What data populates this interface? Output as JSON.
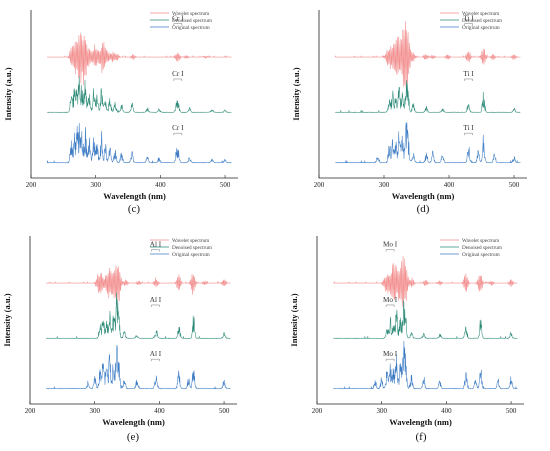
{
  "colors": {
    "wavelet": "#f28b8b",
    "denoised": "#2e8b78",
    "original": "#3d7cc4",
    "axis": "#222222"
  },
  "chart_data": [
    {
      "type": "line",
      "panel": "(c)",
      "element": "Cr I",
      "xlabel": "Wavelength (nm)",
      "ylabel": "Intensity (a.u.)",
      "xlim": [
        200,
        520
      ],
      "xticks": [
        200,
        300,
        400,
        500
      ],
      "legend": [
        "Wavelet spectrum",
        "Denoised spectrum",
        "Original spectrum"
      ],
      "legend_position": "top-right",
      "element_line_nm": 427,
      "series": [
        {
          "name": "Wavelet spectrum",
          "range": [
            225,
            510
          ],
          "peaks": [
            [
              263,
              0.45
            ],
            [
              268,
              0.55
            ],
            [
              273,
              0.7
            ],
            [
              277,
              0.85
            ],
            [
              281,
              0.6
            ],
            [
              284,
              0.75
            ],
            [
              290,
              0.4
            ],
            [
              298,
              0.5
            ],
            [
              303,
              0.35
            ],
            [
              311,
              0.95
            ],
            [
              318,
              0.3
            ],
            [
              326,
              0.25
            ],
            [
              333,
              0.18
            ],
            [
              358,
              0.12
            ],
            [
              425,
              0.15
            ],
            [
              428,
              0.12
            ],
            [
              440,
              0.08
            ],
            [
              470,
              0.06
            ]
          ]
        },
        {
          "name": "Denoised spectrum",
          "range": [
            225,
            510
          ],
          "peaks": [
            [
              262,
              0.5
            ],
            [
              267,
              0.62
            ],
            [
              271,
              0.75
            ],
            [
              275,
              0.9
            ],
            [
              279,
              0.68
            ],
            [
              284,
              0.8
            ],
            [
              290,
              0.55
            ],
            [
              297,
              0.6
            ],
            [
              302,
              0.45
            ],
            [
              309,
              0.7
            ],
            [
              315,
              0.4
            ],
            [
              322,
              0.35
            ],
            [
              330,
              0.3
            ],
            [
              340,
              0.22
            ],
            [
              356,
              0.25
            ],
            [
              380,
              0.12
            ],
            [
              398,
              0.1
            ],
            [
              425,
              0.25
            ],
            [
              428,
              0.2
            ],
            [
              445,
              0.12
            ],
            [
              480,
              0.08
            ],
            [
              500,
              0.06
            ]
          ]
        },
        {
          "name": "Original spectrum",
          "range": [
            225,
            510
          ],
          "peaks": [
            [
              262,
              0.55
            ],
            [
              267,
              0.68
            ],
            [
              271,
              0.8
            ],
            [
              275,
              0.95
            ],
            [
              279,
              0.72
            ],
            [
              284,
              0.85
            ],
            [
              290,
              0.6
            ],
            [
              297,
              0.66
            ],
            [
              302,
              0.5
            ],
            [
              309,
              0.75
            ],
            [
              315,
              0.45
            ],
            [
              322,
              0.4
            ],
            [
              330,
              0.35
            ],
            [
              340,
              0.28
            ],
            [
              356,
              0.3
            ],
            [
              380,
              0.15
            ],
            [
              398,
              0.14
            ],
            [
              425,
              0.3
            ],
            [
              428,
              0.25
            ],
            [
              445,
              0.15
            ],
            [
              480,
              0.1
            ],
            [
              500,
              0.08
            ]
          ]
        }
      ]
    },
    {
      "type": "line",
      "panel": "(d)",
      "element": "Ti I",
      "xlabel": "Wavelength (nm)",
      "ylabel": "Intensity (a.u.)",
      "xlim": [
        200,
        520
      ],
      "xticks": [
        200,
        300,
        400,
        500
      ],
      "legend": [
        "Wavelet spectrum",
        "Denoised spectrum",
        "Original spectrum"
      ],
      "legend_position": "top-right",
      "element_line_nm": 430,
      "series": [
        {
          "name": "Wavelet spectrum",
          "range": [
            225,
            510
          ],
          "peaks": [
            [
              305,
              0.3
            ],
            [
              310,
              0.45
            ],
            [
              316,
              0.55
            ],
            [
              320,
              0.65
            ],
            [
              323,
              0.55
            ],
            [
              328,
              0.7
            ],
            [
              332,
              0.85
            ],
            [
              335,
              0.95
            ],
            [
              338,
              0.6
            ],
            [
              345,
              0.2
            ],
            [
              364,
              0.15
            ],
            [
              375,
              0.1
            ],
            [
              398,
              0.15
            ],
            [
              430,
              0.3
            ],
            [
              453,
              0.45
            ],
            [
              468,
              0.15
            ],
            [
              500,
              0.15
            ]
          ]
        },
        {
          "name": "Denoised spectrum",
          "range": [
            225,
            510
          ],
          "peaks": [
            [
              308,
              0.35
            ],
            [
              313,
              0.5
            ],
            [
              318,
              0.42
            ],
            [
              323,
              0.7
            ],
            [
              328,
              0.55
            ],
            [
              334,
              0.85
            ],
            [
              337,
              0.6
            ],
            [
              345,
              0.25
            ],
            [
              365,
              0.15
            ],
            [
              390,
              0.12
            ],
            [
              430,
              0.3
            ],
            [
              453,
              0.5
            ],
            [
              500,
              0.12
            ]
          ]
        },
        {
          "name": "Original spectrum",
          "range": [
            225,
            510
          ],
          "peaks": [
            [
              290,
              0.15
            ],
            [
              308,
              0.45
            ],
            [
              313,
              0.6
            ],
            [
              318,
              0.5
            ],
            [
              323,
              0.8
            ],
            [
              328,
              0.65
            ],
            [
              334,
              0.95
            ],
            [
              337,
              0.7
            ],
            [
              345,
              0.35
            ],
            [
              365,
              0.25
            ],
            [
              375,
              0.3
            ],
            [
              390,
              0.22
            ],
            [
              430,
              0.45
            ],
            [
              445,
              0.3
            ],
            [
              453,
              0.65
            ],
            [
              470,
              0.25
            ],
            [
              500,
              0.2
            ]
          ]
        }
      ]
    },
    {
      "type": "line",
      "panel": "(e)",
      "element": "Al I",
      "xlabel": "Wavelength (nm)",
      "ylabel": "Intensity (a.u.)",
      "xlim": [
        200,
        520
      ],
      "xticks": [
        200,
        300,
        400,
        500
      ],
      "legend": [
        "Wavelet spectrum",
        "Denoised spectrum",
        "Original spectrum"
      ],
      "legend_position": "top-right",
      "element_line_nm": 394,
      "series": [
        {
          "name": "Wavelet spectrum",
          "range": [
            225,
            510
          ],
          "peaks": [
            [
              305,
              0.35
            ],
            [
              310,
              0.55
            ],
            [
              318,
              0.4
            ],
            [
              323,
              0.65
            ],
            [
              329,
              0.55
            ],
            [
              334,
              0.95
            ],
            [
              338,
              0.5
            ],
            [
              348,
              0.15
            ],
            [
              368,
              0.12
            ],
            [
              394,
              0.12
            ],
            [
              396,
              0.1
            ],
            [
              430,
              0.45
            ],
            [
              452,
              0.6
            ],
            [
              470,
              0.12
            ],
            [
              500,
              0.2
            ]
          ]
        },
        {
          "name": "Denoised spectrum",
          "range": [
            225,
            510
          ],
          "peaks": [
            [
              308,
              0.35
            ],
            [
              313,
              0.55
            ],
            [
              318,
              0.45
            ],
            [
              323,
              0.75
            ],
            [
              329,
              0.6
            ],
            [
              334,
              0.95
            ],
            [
              337,
              0.6
            ],
            [
              346,
              0.2
            ],
            [
              365,
              0.12
            ],
            [
              394,
              0.12
            ],
            [
              396,
              0.1
            ],
            [
              430,
              0.35
            ],
            [
              453,
              0.55
            ],
            [
              500,
              0.15
            ]
          ]
        },
        {
          "name": "Original spectrum",
          "range": [
            225,
            510
          ],
          "peaks": [
            [
              290,
              0.2
            ],
            [
              300,
              0.3
            ],
            [
              308,
              0.45
            ],
            [
              313,
              0.65
            ],
            [
              318,
              0.55
            ],
            [
              323,
              0.85
            ],
            [
              329,
              0.7
            ],
            [
              334,
              1.0
            ],
            [
              337,
              0.7
            ],
            [
              346,
              0.3
            ],
            [
              365,
              0.2
            ],
            [
              394,
              0.2
            ],
            [
              396,
              0.18
            ],
            [
              430,
              0.45
            ],
            [
              445,
              0.3
            ],
            [
              453,
              0.65
            ],
            [
              500,
              0.25
            ]
          ]
        }
      ]
    },
    {
      "type": "line",
      "panel": "(f)",
      "element": "Mo I",
      "xlabel": "Wavelength (nm)",
      "ylabel": "Intensity (a.u.)",
      "xlim": [
        200,
        520
      ],
      "xticks": [
        200,
        300,
        400,
        500
      ],
      "legend": [
        "Wavelet spectrum",
        "Denoised spectrum",
        "Original spectrum"
      ],
      "legend_position": "top-right",
      "element_line_nm": 313,
      "series": [
        {
          "name": "Wavelet spectrum",
          "range": [
            225,
            510
          ],
          "peaks": [
            [
              305,
              0.3
            ],
            [
              310,
              0.45
            ],
            [
              316,
              0.55
            ],
            [
              320,
              0.7
            ],
            [
              325,
              0.55
            ],
            [
              330,
              0.8
            ],
            [
              334,
              0.95
            ],
            [
              338,
              0.55
            ],
            [
              347,
              0.2
            ],
            [
              368,
              0.15
            ],
            [
              390,
              0.12
            ],
            [
              430,
              0.45
            ],
            [
              452,
              0.55
            ],
            [
              470,
              0.12
            ],
            [
              500,
              0.2
            ]
          ]
        },
        {
          "name": "Denoised spectrum",
          "range": [
            225,
            510
          ],
          "peaks": [
            [
              308,
              0.35
            ],
            [
              313,
              0.55
            ],
            [
              318,
              0.45
            ],
            [
              323,
              0.75
            ],
            [
              329,
              0.6
            ],
            [
              334,
              0.9
            ],
            [
              337,
              0.6
            ],
            [
              346,
              0.2
            ],
            [
              365,
              0.15
            ],
            [
              390,
              0.12
            ],
            [
              430,
              0.3
            ],
            [
              453,
              0.5
            ],
            [
              500,
              0.15
            ]
          ]
        },
        {
          "name": "Original spectrum",
          "range": [
            225,
            510
          ],
          "peaks": [
            [
              290,
              0.25
            ],
            [
              300,
              0.3
            ],
            [
              308,
              0.45
            ],
            [
              313,
              0.65
            ],
            [
              318,
              0.55
            ],
            [
              323,
              0.85
            ],
            [
              329,
              0.7
            ],
            [
              334,
              1.0
            ],
            [
              337,
              0.7
            ],
            [
              346,
              0.35
            ],
            [
              365,
              0.25
            ],
            [
              390,
              0.2
            ],
            [
              430,
              0.4
            ],
            [
              445,
              0.3
            ],
            [
              453,
              0.6
            ],
            [
              480,
              0.25
            ],
            [
              500,
              0.3
            ]
          ]
        }
      ]
    }
  ]
}
